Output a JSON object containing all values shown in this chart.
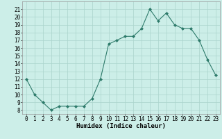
{
  "x": [
    0,
    1,
    2,
    3,
    4,
    5,
    6,
    7,
    8,
    9,
    10,
    11,
    12,
    13,
    14,
    15,
    16,
    17,
    18,
    19,
    20,
    21,
    22,
    23
  ],
  "y": [
    12,
    10,
    9,
    8,
    8.5,
    8.5,
    8.5,
    8.5,
    9.5,
    12,
    16.5,
    17,
    17.5,
    17.5,
    18.5,
    21,
    19.5,
    20.5,
    19,
    18.5,
    18.5,
    17,
    14.5,
    12.5
  ],
  "line_color": "#2d7a6a",
  "marker": "D",
  "marker_size": 2.0,
  "background_color": "#cceee8",
  "grid_color": "#aad4cc",
  "xlabel": "Humidex (Indice chaleur)",
  "xlim": [
    -0.5,
    23.5
  ],
  "ylim": [
    7.5,
    22
  ],
  "yticks": [
    8,
    9,
    10,
    11,
    12,
    13,
    14,
    15,
    16,
    17,
    18,
    19,
    20,
    21
  ],
  "xticks": [
    0,
    1,
    2,
    3,
    4,
    5,
    6,
    7,
    8,
    9,
    10,
    11,
    12,
    13,
    14,
    15,
    16,
    17,
    18,
    19,
    20,
    21,
    22,
    23
  ],
  "tick_fontsize": 5.5,
  "xlabel_fontsize": 6.5
}
